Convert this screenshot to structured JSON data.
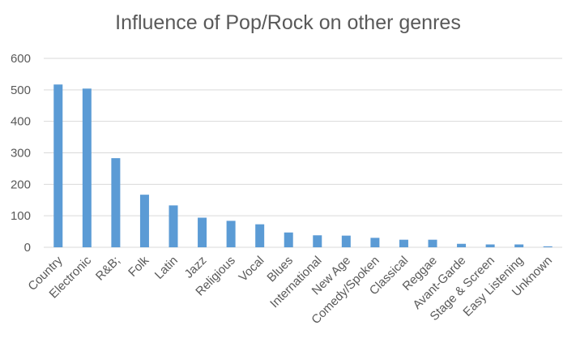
{
  "chart_data": {
    "type": "bar",
    "title": "Influence of Pop/Rock on other genres",
    "xlabel": "",
    "ylabel": "",
    "categories": [
      "Country",
      "Electronic",
      "R&B;",
      "Folk",
      "Latin",
      "Jazz",
      "Religious",
      "Vocal",
      "Blues",
      "International",
      "New Age",
      "Comedy/Spoken",
      "Classical",
      "Reggae",
      "Avant-Garde",
      "Stage & Screen",
      "Easy Listening",
      "Unknown"
    ],
    "values": [
      517,
      504,
      283,
      167,
      133,
      94,
      84,
      73,
      47,
      38,
      37,
      30,
      24,
      24,
      11,
      9,
      9,
      3
    ],
    "ylim": [
      0,
      600
    ],
    "yticks": [
      "0",
      "100",
      "200",
      "300",
      "400",
      "500",
      "600"
    ],
    "grid": true,
    "legend": "none",
    "colors": {
      "bar": "#5b9bd5",
      "grid": "#d9d9d9",
      "axis_text": "#595959"
    }
  }
}
